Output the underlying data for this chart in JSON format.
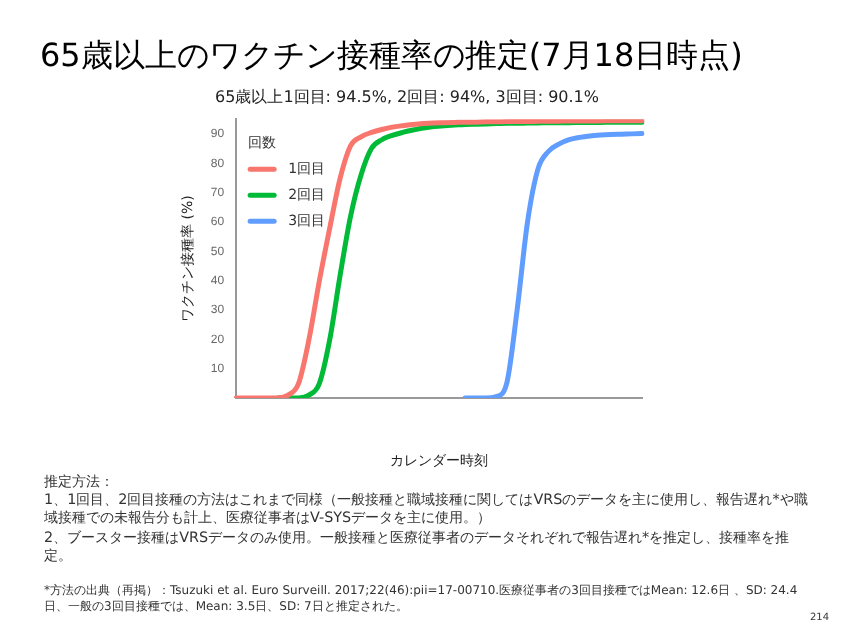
{
  "chart_data": {
    "type": "line",
    "title": "65歳以上のワクチン接種率の推定(7月18日時点)",
    "subtitle": "65歳以上1回目: 94.5%, 2回目: 94%, 3回目: 90.1%",
    "xlabel": "カレンダー時刻",
    "ylabel": "ワクチン接種率 (%)",
    "legend_title": "回数",
    "legend": "top left",
    "grid": false,
    "marker": "none",
    "line_style": "solid",
    "categories": [
      null,
      null,
      null,
      null,
      null,
      null,
      null,
      null,
      null,
      null,
      null,
      null,
      null,
      null,
      null,
      null,
      null,
      null,
      null,
      null,
      null,
      null,
      null,
      null,
      null,
      null,
      null,
      null,
      null,
      null,
      null,
      null,
      null,
      null,
      null,
      null,
      null,
      null,
      null,
      null
    ],
    "ylim": [
      0,
      95
    ],
    "yticks": [
      10,
      20,
      30,
      40,
      50,
      60,
      70,
      80,
      90
    ],
    "series": [
      {
        "name": "1回目",
        "color": "#f8766d",
        "values": [
          0,
          0,
          0,
          0,
          0,
          1,
          5,
          20,
          40,
          58,
          75,
          86,
          89,
          90.5,
          91.5,
          92.3,
          92.8,
          93.2,
          93.5,
          93.7,
          93.8,
          93.9,
          94,
          94,
          94.1,
          94.1,
          94.2,
          94.2,
          94.2,
          94.3,
          94.3,
          94.3,
          94.4,
          94.4,
          94.4,
          94.4,
          94.5,
          94.5,
          94.5,
          94.5
        ]
      },
      {
        "name": "2回目",
        "color": "#00ba38",
        "values": [
          null,
          null,
          null,
          null,
          0,
          0,
          0,
          1,
          5,
          20,
          42,
          62,
          76,
          85,
          88,
          89.5,
          90.5,
          91.3,
          92,
          92.5,
          92.8,
          93,
          93.2,
          93.3,
          93.4,
          93.5,
          93.6,
          93.6,
          93.7,
          93.7,
          93.8,
          93.8,
          93.8,
          93.9,
          93.9,
          93.9,
          94,
          94,
          94,
          94
        ]
      },
      {
        "name": "3回目",
        "color": "#619cff",
        "values": [
          null,
          null,
          null,
          null,
          null,
          null,
          null,
          null,
          null,
          null,
          null,
          null,
          null,
          null,
          null,
          null,
          null,
          null,
          null,
          null,
          null,
          null,
          0,
          0,
          0,
          0.5,
          5,
          30,
          60,
          78,
          84,
          86.5,
          88,
          88.8,
          89.3,
          89.6,
          89.8,
          89.9,
          90,
          90.1
        ]
      }
    ],
    "annotations": [
      "推定方法：",
      "1、1回目、2回目接種の方法はこれまで同様（一般接種と職域接種に関してはVRSのデータを主に使用し、報告遅れ*や職域接種での未報告分も計上、医療従事者はV-SYSデータを主に使用。）",
      "2、ブースター接種はVRSデータのみ使用。一般接種と医療従事者のデータそれぞれで報告遅れ*を推定し、接種率を推定。",
      "*方法の出典（再掲）：Tsuzuki et al. Euro Surveill. 2017;22(46):pii=17-00710.医療従事者の3回目接種ではMean: 12.6日 、SD: 24.4日、一般の3回目接種では、Mean: 3.5日、SD: 7日と推定された。",
      "214"
    ]
  }
}
